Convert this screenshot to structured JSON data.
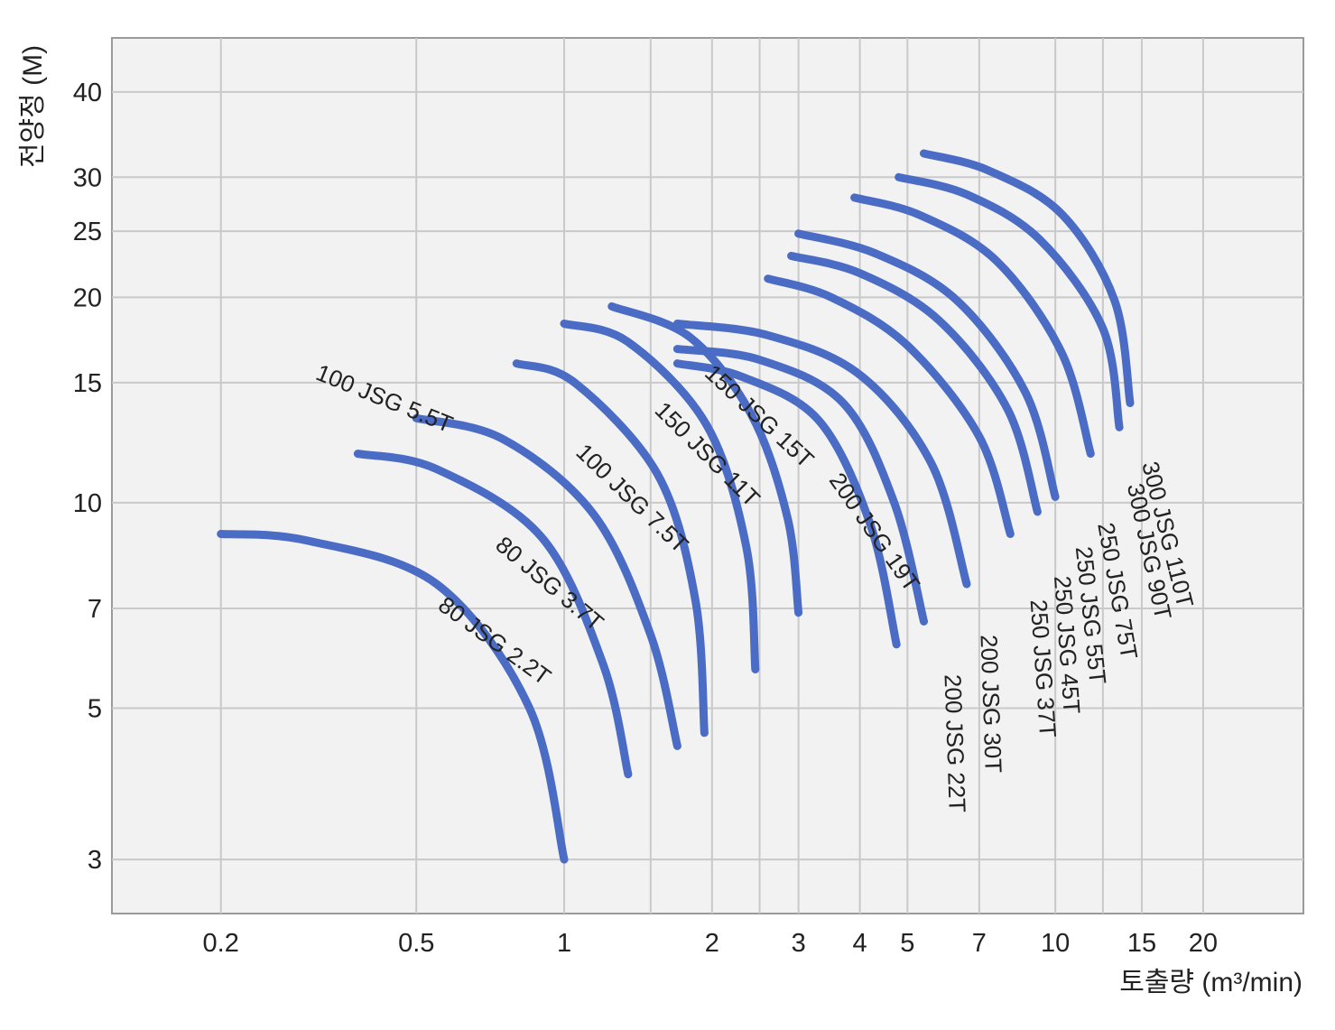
{
  "chart_data": {
    "type": "line",
    "title": "",
    "xlabel": "토출량 (m³/min)",
    "ylabel": "전양정 (M)",
    "x_scale": "log",
    "y_scale": "log",
    "xlim": [
      0.12,
      32
    ],
    "ylim": [
      2.5,
      48
    ],
    "grid": true,
    "legend": "none",
    "x_ticks": [
      {
        "value": 0.2,
        "label": "0.2"
      },
      {
        "value": 0.5,
        "label": "0.5"
      },
      {
        "value": 1,
        "label": "1"
      },
      {
        "value": 2,
        "label": "2"
      },
      {
        "value": 3,
        "label": "3"
      },
      {
        "value": 4,
        "label": "4"
      },
      {
        "value": 5,
        "label": "5"
      },
      {
        "value": 7,
        "label": "7"
      },
      {
        "value": 10,
        "label": "10"
      },
      {
        "value": 15,
        "label": "15"
      },
      {
        "value": 20,
        "label": "20"
      }
    ],
    "x_grid": [
      0.2,
      0.5,
      1,
      1.5,
      2,
      2.5,
      3,
      4,
      5,
      7,
      10,
      12.5,
      15,
      20
    ],
    "y_ticks": [
      {
        "value": 3,
        "label": "3"
      },
      {
        "value": 5,
        "label": "5"
      },
      {
        "value": 7,
        "label": "7"
      },
      {
        "value": 10,
        "label": "10"
      },
      {
        "value": 15,
        "label": "15"
      },
      {
        "value": 20,
        "label": "20"
      },
      {
        "value": 25,
        "label": "25"
      },
      {
        "value": 30,
        "label": "30"
      },
      {
        "value": 40,
        "label": "40"
      }
    ],
    "series_color": "#4a6cc4",
    "series": [
      {
        "name": "80 JSG 2.2T",
        "x": [
          0.2,
          0.3,
          0.55,
          0.85,
          1.0
        ],
        "y": [
          9.0,
          8.8,
          7.6,
          5.0,
          3.0
        ]
      },
      {
        "name": "80 JSG 3.7T",
        "x": [
          0.38,
          0.55,
          0.9,
          1.2,
          1.35
        ],
        "y": [
          11.8,
          11.2,
          8.9,
          5.8,
          4.0
        ]
      },
      {
        "name": "100 JSG 5.5T",
        "x": [
          0.5,
          0.75,
          1.15,
          1.5,
          1.7
        ],
        "y": [
          13.3,
          12.4,
          9.6,
          6.4,
          4.4
        ]
      },
      {
        "name": "100 JSG 7.5T",
        "x": [
          0.8,
          1.05,
          1.55,
          1.85,
          1.93
        ],
        "y": [
          16.0,
          15.0,
          11.0,
          7.2,
          4.6
        ]
      },
      {
        "name": "150 JSG 11T",
        "x": [
          1.0,
          1.35,
          1.95,
          2.35,
          2.45
        ],
        "y": [
          18.3,
          17.2,
          13.0,
          8.6,
          5.7
        ]
      },
      {
        "name": "150 JSG 15T",
        "x": [
          1.25,
          1.8,
          2.4,
          2.85,
          3.0
        ],
        "y": [
          19.4,
          17.5,
          13.5,
          9.5,
          6.9
        ]
      },
      {
        "name": "200 JSG 19T",
        "x": [
          1.7,
          2.3,
          3.3,
          4.2,
          4.75
        ],
        "y": [
          16.0,
          15.3,
          13.2,
          9.3,
          6.2
        ]
      },
      {
        "name": "200 JSG 22T",
        "x": [
          1.7,
          2.5,
          3.7,
          4.7,
          5.4
        ],
        "y": [
          16.8,
          16.2,
          14.0,
          10.0,
          6.7
        ]
      },
      {
        "name": "200 JSG 30T",
        "x": [
          1.7,
          2.6,
          4.0,
          5.6,
          6.6
        ],
        "y": [
          18.3,
          17.6,
          15.4,
          11.4,
          7.6
        ]
      },
      {
        "name": "250 JSG 37T",
        "x": [
          2.6,
          3.5,
          5.0,
          7.0,
          8.1
        ],
        "y": [
          21.3,
          20.0,
          17.0,
          12.5,
          9.0
        ]
      },
      {
        "name": "250 JSG 45T",
        "x": [
          2.9,
          4.0,
          5.8,
          8.0,
          9.2
        ],
        "y": [
          23.0,
          21.7,
          18.5,
          13.7,
          9.7
        ]
      },
      {
        "name": "250 JSG 55T",
        "x": [
          3.0,
          4.3,
          6.3,
          8.7,
          10.0
        ],
        "y": [
          24.8,
          23.2,
          19.8,
          14.5,
          10.2
        ]
      },
      {
        "name": "250 JSG 75T",
        "x": [
          3.9,
          5.3,
          7.6,
          10.3,
          11.8
        ],
        "y": [
          28.0,
          26.4,
          22.6,
          16.6,
          11.8
        ]
      },
      {
        "name": "300 JSG 90T",
        "x": [
          4.8,
          6.6,
          9.3,
          12.5,
          13.5
        ],
        "y": [
          30.0,
          28.3,
          24.3,
          18.0,
          12.9
        ]
      },
      {
        "name": "300 JSG 110T",
        "x": [
          5.4,
          7.3,
          10.3,
          13.2,
          14.2
        ],
        "y": [
          32.5,
          30.7,
          26.5,
          19.8,
          14.0
        ]
      }
    ],
    "labels": [
      {
        "text": "80 JSG 2.2T",
        "x": 0.55,
        "y": 7.0,
        "angle": 36
      },
      {
        "text": "80 JSG 3.7T",
        "x": 0.72,
        "y": 8.6,
        "angle": 40
      },
      {
        "text": "100 JSG 5.5T",
        "x": 0.31,
        "y": 15.2,
        "angle": 22
      },
      {
        "text": "100 JSG 7.5T",
        "x": 1.05,
        "y": 11.8,
        "angle": 44
      },
      {
        "text": "150 JSG 11T",
        "x": 1.52,
        "y": 13.6,
        "angle": 45
      },
      {
        "text": "150 JSG 15T",
        "x": 1.92,
        "y": 15.4,
        "angle": 43
      },
      {
        "text": "200 JSG 19T",
        "x": 3.45,
        "y": 10.8,
        "angle": 55
      },
      {
        "text": "200 JSG 22T",
        "x": 5.95,
        "y": 5.6,
        "angle": 88
      },
      {
        "text": "200 JSG 30T",
        "x": 7.05,
        "y": 6.4,
        "angle": 88
      },
      {
        "text": "250 JSG 37T",
        "x": 8.9,
        "y": 7.2,
        "angle": 86
      },
      {
        "text": "250 JSG 45T",
        "x": 9.95,
        "y": 7.8,
        "angle": 86
      },
      {
        "text": "250 JSG 55T",
        "x": 11.0,
        "y": 8.6,
        "angle": 84
      },
      {
        "text": "250 JSG 75T",
        "x": 12.2,
        "y": 9.3,
        "angle": 80
      },
      {
        "text": "300 JSG 90T",
        "x": 14.0,
        "y": 10.6,
        "angle": 78
      },
      {
        "text": "300 JSG 110T",
        "x": 15.0,
        "y": 11.4,
        "angle": 76
      }
    ]
  }
}
